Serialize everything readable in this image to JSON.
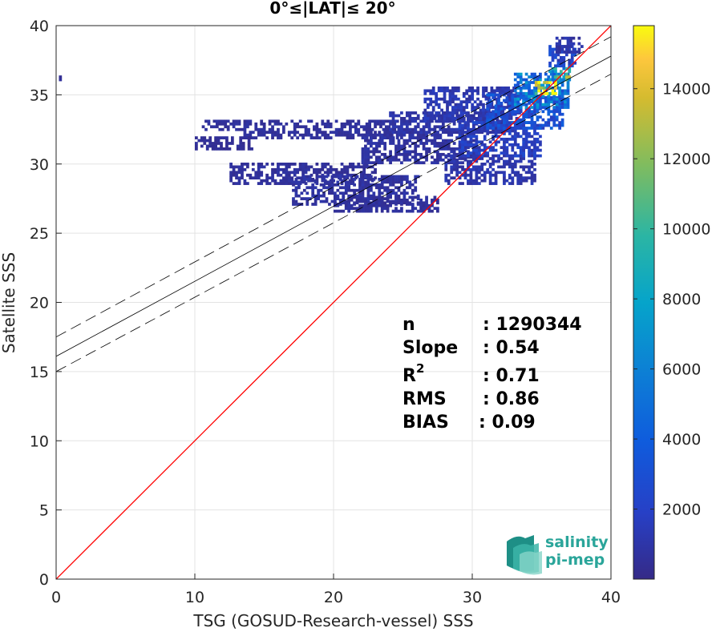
{
  "chart_data": {
    "type": "heatmap",
    "title": "0°≤|LAT|≤ 20°",
    "xlabel": "TSG (GOSUD-Research-vessel) SSS",
    "ylabel": "Satellite SSS",
    "xlim": [
      0,
      40
    ],
    "ylim": [
      0,
      40
    ],
    "xticks": [
      0,
      10,
      20,
      30,
      40
    ],
    "yticks": [
      0,
      5,
      10,
      15,
      20,
      25,
      30,
      35,
      40
    ],
    "grid": true,
    "colorbar": {
      "range": [
        0,
        15800
      ],
      "ticks": [
        2000,
        4000,
        6000,
        8000,
        10000,
        12000,
        14000
      ],
      "colormap": "parula"
    },
    "lines": [
      {
        "name": "1:1",
        "x": [
          0,
          40
        ],
        "y": [
          0,
          40
        ],
        "color": "#ff0000",
        "style": "solid"
      },
      {
        "name": "regression",
        "x": [
          0,
          40
        ],
        "y": [
          16.1,
          37.8
        ],
        "color": "#000000",
        "style": "solid"
      },
      {
        "name": "upper",
        "x": [
          0,
          40
        ],
        "y": [
          17.5,
          39.2
        ],
        "color": "#000000",
        "style": "dashed"
      },
      {
        "name": "lower",
        "x": [
          0,
          40
        ],
        "y": [
          15.0,
          36.5
        ],
        "color": "#000000",
        "style": "dashed"
      }
    ],
    "density_clusters": [
      {
        "x": [
          0.2,
          0.3
        ],
        "y": [
          36.0,
          36.3
        ],
        "level": 0.03
      },
      {
        "x": [
          10.5,
          13.5
        ],
        "y": [
          32.4,
          33.1
        ],
        "level": 0.04
      },
      {
        "x": [
          13.5,
          24.5
        ],
        "y": [
          31.8,
          33.2
        ],
        "level": 0.04
      },
      {
        "x": [
          10.0,
          14.0
        ],
        "y": [
          31.0,
          31.8
        ],
        "level": 0.03
      },
      {
        "x": [
          12.5,
          23.0
        ],
        "y": [
          28.5,
          30.0
        ],
        "level": 0.04
      },
      {
        "x": [
          17.0,
          26.0
        ],
        "y": [
          27.0,
          29.0
        ],
        "level": 0.05
      },
      {
        "x": [
          20.0,
          27.5
        ],
        "y": [
          26.5,
          27.6
        ],
        "level": 0.04
      },
      {
        "x": [
          22.0,
          30.0
        ],
        "y": [
          30.0,
          32.5
        ],
        "level": 0.05
      },
      {
        "x": [
          24.0,
          32.0
        ],
        "y": [
          32.2,
          33.8
        ],
        "level": 0.06
      },
      {
        "x": [
          26.5,
          33.5
        ],
        "y": [
          33.0,
          35.5
        ],
        "level": 0.08
      },
      {
        "x": [
          28.0,
          34.5
        ],
        "y": [
          28.5,
          30.5
        ],
        "level": 0.07
      },
      {
        "x": [
          29.0,
          35.0
        ],
        "y": [
          30.5,
          33.0
        ],
        "level": 0.12
      },
      {
        "x": [
          31.0,
          36.5
        ],
        "y": [
          32.5,
          35.0
        ],
        "level": 0.2
      },
      {
        "x": [
          33.0,
          37.0
        ],
        "y": [
          34.0,
          36.5
        ],
        "level": 0.35
      },
      {
        "x": [
          34.5,
          36.0
        ],
        "y": [
          35.0,
          36.0
        ],
        "level": 0.9
      },
      {
        "x": [
          35.5,
          37.0
        ],
        "y": [
          36.0,
          37.0
        ],
        "level": 0.6
      },
      {
        "x": [
          35.5,
          37.5
        ],
        "y": [
          37.0,
          38.5
        ],
        "level": 0.15
      },
      {
        "x": [
          36.0,
          38.0
        ],
        "y": [
          38.0,
          39.2
        ],
        "level": 0.06
      }
    ]
  },
  "stats": {
    "n_label": "n",
    "n_value": ": 1290344",
    "slope_label": "Slope",
    "slope_value": ": 0.54",
    "r2_label": "R",
    "r2_sup": "2",
    "r2_value": ": 0.71",
    "rms_label": "RMS",
    "rms_value": ": 0.86",
    "bias_label": "BIAS",
    "bias_value": ": 0.09"
  },
  "logo": {
    "line1": "salinity",
    "line2": "pi-mep",
    "color": "#2aa59a"
  }
}
